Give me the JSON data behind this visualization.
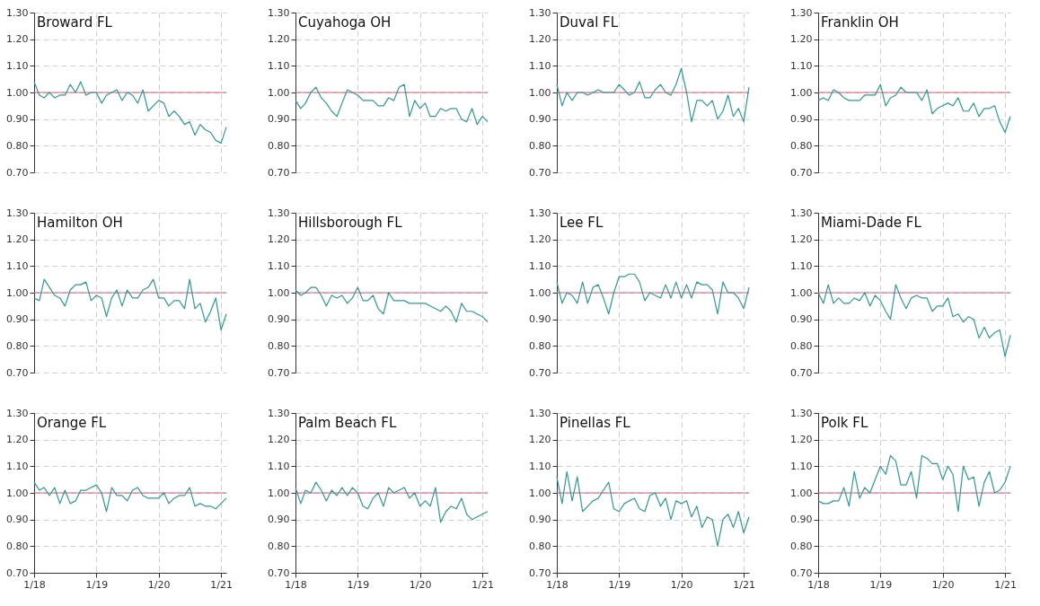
{
  "chart_data": [
    {
      "type": "line",
      "title": "Broward FL",
      "tick_labels": "y",
      "color": "#2e9a94",
      "grid": true,
      "xlim": [
        "2018-01",
        "2021-02"
      ],
      "xticks": [
        {
          "value": "2018-01",
          "label": null
        },
        {
          "value": "2019-01",
          "label": null
        },
        {
          "value": "2020-01",
          "label": null
        },
        {
          "value": "2021-01",
          "label": null
        }
      ],
      "ylim": [
        0.7,
        1.3
      ],
      "yticks": [
        {
          "value": 0.7,
          "label": "0.70"
        },
        {
          "value": 0.8,
          "label": "0.80"
        },
        {
          "value": 0.9,
          "label": "0.90"
        },
        {
          "value": 1.0,
          "label": "1.00"
        },
        {
          "value": 1.1,
          "label": "1.10"
        },
        {
          "value": 1.2,
          "label": "1.20"
        },
        {
          "value": 1.3,
          "label": "1.30"
        }
      ],
      "ref_lines": [
        {
          "axis": "y",
          "value": 1.0,
          "color": "#d9607e"
        }
      ],
      "x": [
        "2018-01",
        "2018-02",
        "2018-03",
        "2018-04",
        "2018-05",
        "2018-06",
        "2018-07",
        "2018-08",
        "2018-09",
        "2018-10",
        "2018-11",
        "2018-12",
        "2019-01",
        "2019-02",
        "2019-03",
        "2019-04",
        "2019-05",
        "2019-06",
        "2019-07",
        "2019-08",
        "2019-09",
        "2019-10",
        "2019-11",
        "2019-12",
        "2020-01",
        "2020-02",
        "2020-03",
        "2020-04",
        "2020-05",
        "2020-06",
        "2020-07",
        "2020-08",
        "2020-09",
        "2020-10",
        "2020-11",
        "2020-12",
        "2021-01",
        "2021-02"
      ],
      "values": [
        1.04,
        0.99,
        0.98,
        1.0,
        0.98,
        0.99,
        0.99,
        1.03,
        1.0,
        1.04,
        0.99,
        1.0,
        1.0,
        0.96,
        0.99,
        1.0,
        1.01,
        0.97,
        1.0,
        0.99,
        0.96,
        1.01,
        0.93,
        0.95,
        0.97,
        0.96,
        0.91,
        0.93,
        0.91,
        0.88,
        0.89,
        0.84,
        0.88,
        0.86,
        0.85,
        0.82,
        0.81,
        0.87
      ]
    },
    {
      "type": "line",
      "title": "Cuyahoga OH",
      "tick_labels": "y",
      "color": "#2e9a94",
      "grid": true,
      "xlim": [
        "2018-01",
        "2021-02"
      ],
      "xticks": [
        {
          "value": "2018-01",
          "label": null
        },
        {
          "value": "2019-01",
          "label": null
        },
        {
          "value": "2020-01",
          "label": null
        },
        {
          "value": "2021-01",
          "label": null
        }
      ],
      "ylim": [
        0.7,
        1.3
      ],
      "yticks": [
        {
          "value": 0.7,
          "label": "0.70"
        },
        {
          "value": 0.8,
          "label": "0.80"
        },
        {
          "value": 0.9,
          "label": "0.90"
        },
        {
          "value": 1.0,
          "label": "1.00"
        },
        {
          "value": 1.1,
          "label": "1.10"
        },
        {
          "value": 1.2,
          "label": "1.20"
        },
        {
          "value": 1.3,
          "label": "1.30"
        }
      ],
      "ref_lines": [
        {
          "axis": "y",
          "value": 1.0,
          "color": "#d9607e"
        }
      ],
      "x": [
        "2018-01",
        "2018-02",
        "2018-03",
        "2018-04",
        "2018-05",
        "2018-06",
        "2018-07",
        "2018-08",
        "2018-09",
        "2018-10",
        "2018-11",
        "2018-12",
        "2019-01",
        "2019-02",
        "2019-03",
        "2019-04",
        "2019-05",
        "2019-06",
        "2019-07",
        "2019-08",
        "2019-09",
        "2019-10",
        "2019-11",
        "2019-12",
        "2020-01",
        "2020-02",
        "2020-03",
        "2020-04",
        "2020-05",
        "2020-06",
        "2020-07",
        "2020-08",
        "2020-09",
        "2020-10",
        "2020-11",
        "2020-12",
        "2021-01",
        "2021-02"
      ],
      "values": [
        0.97,
        0.94,
        0.96,
        1.0,
        1.02,
        0.98,
        0.96,
        0.93,
        0.91,
        0.96,
        1.01,
        1.0,
        0.99,
        0.97,
        0.97,
        0.97,
        0.95,
        0.95,
        0.98,
        0.97,
        1.02,
        1.03,
        0.91,
        0.97,
        0.94,
        0.96,
        0.91,
        0.91,
        0.94,
        0.93,
        0.94,
        0.94,
        0.9,
        0.89,
        0.94,
        0.88,
        0.91,
        0.89
      ]
    },
    {
      "type": "line",
      "title": "Duval FL",
      "tick_labels": "y",
      "color": "#2e9a94",
      "grid": true,
      "xlim": [
        "2018-01",
        "2021-02"
      ],
      "xticks": [
        {
          "value": "2018-01",
          "label": null
        },
        {
          "value": "2019-01",
          "label": null
        },
        {
          "value": "2020-01",
          "label": null
        },
        {
          "value": "2021-01",
          "label": null
        }
      ],
      "ylim": [
        0.7,
        1.3
      ],
      "yticks": [
        {
          "value": 0.7,
          "label": "0.70"
        },
        {
          "value": 0.8,
          "label": "0.80"
        },
        {
          "value": 0.9,
          "label": "0.90"
        },
        {
          "value": 1.0,
          "label": "1.00"
        },
        {
          "value": 1.1,
          "label": "1.10"
        },
        {
          "value": 1.2,
          "label": "1.20"
        },
        {
          "value": 1.3,
          "label": "1.30"
        }
      ],
      "ref_lines": [
        {
          "axis": "y",
          "value": 1.0,
          "color": "#d9607e"
        }
      ],
      "x": [
        "2018-01",
        "2018-02",
        "2018-03",
        "2018-04",
        "2018-05",
        "2018-06",
        "2018-07",
        "2018-08",
        "2018-09",
        "2018-10",
        "2018-11",
        "2018-12",
        "2019-01",
        "2019-02",
        "2019-03",
        "2019-04",
        "2019-05",
        "2019-06",
        "2019-07",
        "2019-08",
        "2019-09",
        "2019-10",
        "2019-11",
        "2019-12",
        "2020-01",
        "2020-02",
        "2020-03",
        "2020-04",
        "2020-05",
        "2020-06",
        "2020-07",
        "2020-08",
        "2020-09",
        "2020-10",
        "2020-11",
        "2020-12",
        "2021-01",
        "2021-02"
      ],
      "values": [
        1.03,
        0.95,
        1.0,
        0.97,
        1.0,
        1.0,
        0.99,
        1.0,
        1.01,
        1.0,
        1.0,
        1.0,
        1.03,
        1.01,
        0.99,
        1.0,
        1.04,
        0.98,
        0.98,
        1.01,
        1.03,
        1.0,
        0.99,
        1.03,
        1.09,
        1.0,
        0.89,
        0.97,
        0.97,
        0.95,
        0.97,
        0.9,
        0.93,
        0.99,
        0.91,
        0.94,
        0.89,
        1.02
      ]
    },
    {
      "type": "line",
      "title": "Franklin OH",
      "tick_labels": "y",
      "color": "#2e9a94",
      "grid": true,
      "xlim": [
        "2018-01",
        "2021-02"
      ],
      "xticks": [
        {
          "value": "2018-01",
          "label": null
        },
        {
          "value": "2019-01",
          "label": null
        },
        {
          "value": "2020-01",
          "label": null
        },
        {
          "value": "2021-01",
          "label": null
        }
      ],
      "ylim": [
        0.7,
        1.3
      ],
      "yticks": [
        {
          "value": 0.7,
          "label": "0.70"
        },
        {
          "value": 0.8,
          "label": "0.80"
        },
        {
          "value": 0.9,
          "label": "0.90"
        },
        {
          "value": 1.0,
          "label": "1.00"
        },
        {
          "value": 1.1,
          "label": "1.10"
        },
        {
          "value": 1.2,
          "label": "1.20"
        },
        {
          "value": 1.3,
          "label": "1.30"
        }
      ],
      "ref_lines": [
        {
          "axis": "y",
          "value": 1.0,
          "color": "#d9607e"
        }
      ],
      "x": [
        "2018-01",
        "2018-02",
        "2018-03",
        "2018-04",
        "2018-05",
        "2018-06",
        "2018-07",
        "2018-08",
        "2018-09",
        "2018-10",
        "2018-11",
        "2018-12",
        "2019-01",
        "2019-02",
        "2019-03",
        "2019-04",
        "2019-05",
        "2019-06",
        "2019-07",
        "2019-08",
        "2019-09",
        "2019-10",
        "2019-11",
        "2019-12",
        "2020-01",
        "2020-02",
        "2020-03",
        "2020-04",
        "2020-05",
        "2020-06",
        "2020-07",
        "2020-08",
        "2020-09",
        "2020-10",
        "2020-11",
        "2020-12",
        "2021-01",
        "2021-02"
      ],
      "values": [
        0.97,
        0.98,
        0.97,
        1.01,
        1.0,
        0.98,
        0.97,
        0.97,
        0.97,
        0.99,
        0.99,
        0.99,
        1.03,
        0.95,
        0.98,
        0.99,
        1.02,
        1.0,
        1.0,
        1.0,
        0.97,
        1.01,
        0.92,
        0.94,
        0.95,
        0.96,
        0.95,
        0.98,
        0.93,
        0.93,
        0.96,
        0.91,
        0.94,
        0.94,
        0.95,
        0.89,
        0.85,
        0.91
      ]
    },
    {
      "type": "line",
      "title": "Hamilton OH",
      "tick_labels": "y",
      "color": "#2e9a94",
      "grid": true,
      "xlim": [
        "2018-01",
        "2021-02"
      ],
      "xticks": [
        {
          "value": "2018-01",
          "label": null
        },
        {
          "value": "2019-01",
          "label": null
        },
        {
          "value": "2020-01",
          "label": null
        },
        {
          "value": "2021-01",
          "label": null
        }
      ],
      "ylim": [
        0.7,
        1.3
      ],
      "yticks": [
        {
          "value": 0.7,
          "label": "0.70"
        },
        {
          "value": 0.8,
          "label": "0.80"
        },
        {
          "value": 0.9,
          "label": "0.90"
        },
        {
          "value": 1.0,
          "label": "1.00"
        },
        {
          "value": 1.1,
          "label": "1.10"
        },
        {
          "value": 1.2,
          "label": "1.20"
        },
        {
          "value": 1.3,
          "label": "1.30"
        }
      ],
      "ref_lines": [
        {
          "axis": "y",
          "value": 1.0,
          "color": "#d9607e"
        }
      ],
      "x": [
        "2018-01",
        "2018-02",
        "2018-03",
        "2018-04",
        "2018-05",
        "2018-06",
        "2018-07",
        "2018-08",
        "2018-09",
        "2018-10",
        "2018-11",
        "2018-12",
        "2019-01",
        "2019-02",
        "2019-03",
        "2019-04",
        "2019-05",
        "2019-06",
        "2019-07",
        "2019-08",
        "2019-09",
        "2019-10",
        "2019-11",
        "2019-12",
        "2020-01",
        "2020-02",
        "2020-03",
        "2020-04",
        "2020-05",
        "2020-06",
        "2020-07",
        "2020-08",
        "2020-09",
        "2020-10",
        "2020-11",
        "2020-12",
        "2021-01",
        "2021-02"
      ],
      "values": [
        0.98,
        0.97,
        1.05,
        1.02,
        0.99,
        0.98,
        0.95,
        1.01,
        1.03,
        1.03,
        1.04,
        0.97,
        0.99,
        0.98,
        0.91,
        0.98,
        1.01,
        0.95,
        1.01,
        0.98,
        0.98,
        1.01,
        1.02,
        1.05,
        0.98,
        0.98,
        0.95,
        0.97,
        0.97,
        0.94,
        1.05,
        0.94,
        0.96,
        0.89,
        0.93,
        0.98,
        0.86,
        0.92
      ]
    },
    {
      "type": "line",
      "title": "Hillsborough FL",
      "tick_labels": "y",
      "color": "#2e9a94",
      "grid": true,
      "xlim": [
        "2018-01",
        "2021-02"
      ],
      "xticks": [
        {
          "value": "2018-01",
          "label": null
        },
        {
          "value": "2019-01",
          "label": null
        },
        {
          "value": "2020-01",
          "label": null
        },
        {
          "value": "2021-01",
          "label": null
        }
      ],
      "ylim": [
        0.7,
        1.3
      ],
      "yticks": [
        {
          "value": 0.7,
          "label": "0.70"
        },
        {
          "value": 0.8,
          "label": "0.80"
        },
        {
          "value": 0.9,
          "label": "0.90"
        },
        {
          "value": 1.0,
          "label": "1.00"
        },
        {
          "value": 1.1,
          "label": "1.10"
        },
        {
          "value": 1.2,
          "label": "1.20"
        },
        {
          "value": 1.3,
          "label": "1.30"
        }
      ],
      "ref_lines": [
        {
          "axis": "y",
          "value": 1.0,
          "color": "#d9607e"
        }
      ],
      "x": [
        "2018-01",
        "2018-02",
        "2018-03",
        "2018-04",
        "2018-05",
        "2018-06",
        "2018-07",
        "2018-08",
        "2018-09",
        "2018-10",
        "2018-11",
        "2018-12",
        "2019-01",
        "2019-02",
        "2019-03",
        "2019-04",
        "2019-05",
        "2019-06",
        "2019-07",
        "2019-08",
        "2019-09",
        "2019-10",
        "2019-11",
        "2019-12",
        "2020-01",
        "2020-02",
        "2020-03",
        "2020-04",
        "2020-05",
        "2020-06",
        "2020-07",
        "2020-08",
        "2020-09",
        "2020-10",
        "2020-11",
        "2020-12",
        "2021-01",
        "2021-02"
      ],
      "values": [
        1.01,
        0.99,
        1.0,
        1.02,
        1.02,
        0.99,
        0.95,
        0.99,
        0.98,
        0.99,
        0.96,
        0.98,
        1.02,
        0.97,
        0.97,
        0.99,
        0.94,
        0.92,
        1.0,
        0.97,
        0.97,
        0.97,
        0.96,
        0.96,
        0.96,
        0.96,
        0.95,
        0.94,
        0.93,
        0.95,
        0.93,
        0.89,
        0.96,
        0.93,
        0.93,
        0.92,
        0.91,
        0.89
      ]
    },
    {
      "type": "line",
      "title": "Lee FL",
      "tick_labels": "y",
      "color": "#2e9a94",
      "grid": true,
      "xlim": [
        "2018-01",
        "2021-02"
      ],
      "xticks": [
        {
          "value": "2018-01",
          "label": null
        },
        {
          "value": "2019-01",
          "label": null
        },
        {
          "value": "2020-01",
          "label": null
        },
        {
          "value": "2021-01",
          "label": null
        }
      ],
      "ylim": [
        0.7,
        1.3
      ],
      "yticks": [
        {
          "value": 0.7,
          "label": "0.70"
        },
        {
          "value": 0.8,
          "label": "0.80"
        },
        {
          "value": 0.9,
          "label": "0.90"
        },
        {
          "value": 1.0,
          "label": "1.00"
        },
        {
          "value": 1.1,
          "label": "1.10"
        },
        {
          "value": 1.2,
          "label": "1.20"
        },
        {
          "value": 1.3,
          "label": "1.30"
        }
      ],
      "ref_lines": [
        {
          "axis": "y",
          "value": 1.0,
          "color": "#d9607e"
        }
      ],
      "x": [
        "2018-01",
        "2018-02",
        "2018-03",
        "2018-04",
        "2018-05",
        "2018-06",
        "2018-07",
        "2018-08",
        "2018-09",
        "2018-10",
        "2018-11",
        "2018-12",
        "2019-01",
        "2019-02",
        "2019-03",
        "2019-04",
        "2019-05",
        "2019-06",
        "2019-07",
        "2019-08",
        "2019-09",
        "2019-10",
        "2019-11",
        "2019-12",
        "2020-01",
        "2020-02",
        "2020-03",
        "2020-04",
        "2020-05",
        "2020-06",
        "2020-07",
        "2020-08",
        "2020-09",
        "2020-10",
        "2020-11",
        "2020-12",
        "2021-01",
        "2021-02"
      ],
      "values": [
        1.04,
        0.96,
        1.0,
        0.99,
        0.96,
        1.04,
        0.96,
        1.02,
        1.03,
        0.98,
        0.92,
        1.0,
        1.06,
        1.06,
        1.07,
        1.07,
        1.04,
        0.97,
        1.0,
        0.99,
        0.98,
        1.03,
        0.98,
        1.04,
        0.98,
        1.03,
        0.98,
        1.04,
        1.03,
        1.03,
        1.01,
        0.92,
        1.04,
        1.0,
        1.0,
        0.98,
        0.94,
        1.02
      ]
    },
    {
      "type": "line",
      "title": "Miami-Dade FL",
      "tick_labels": "y",
      "color": "#2e9a94",
      "grid": true,
      "xlim": [
        "2018-01",
        "2021-02"
      ],
      "xticks": [
        {
          "value": "2018-01",
          "label": null
        },
        {
          "value": "2019-01",
          "label": null
        },
        {
          "value": "2020-01",
          "label": null
        },
        {
          "value": "2021-01",
          "label": null
        }
      ],
      "ylim": [
        0.7,
        1.3
      ],
      "yticks": [
        {
          "value": 0.7,
          "label": "0.70"
        },
        {
          "value": 0.8,
          "label": "0.80"
        },
        {
          "value": 0.9,
          "label": "0.90"
        },
        {
          "value": 1.0,
          "label": "1.00"
        },
        {
          "value": 1.1,
          "label": "1.10"
        },
        {
          "value": 1.2,
          "label": "1.20"
        },
        {
          "value": 1.3,
          "label": "1.30"
        }
      ],
      "ref_lines": [
        {
          "axis": "y",
          "value": 1.0,
          "color": "#d9607e"
        }
      ],
      "x": [
        "2018-01",
        "2018-02",
        "2018-03",
        "2018-04",
        "2018-05",
        "2018-06",
        "2018-07",
        "2018-08",
        "2018-09",
        "2018-10",
        "2018-11",
        "2018-12",
        "2019-01",
        "2019-02",
        "2019-03",
        "2019-04",
        "2019-05",
        "2019-06",
        "2019-07",
        "2019-08",
        "2019-09",
        "2019-10",
        "2019-11",
        "2019-12",
        "2020-01",
        "2020-02",
        "2020-03",
        "2020-04",
        "2020-05",
        "2020-06",
        "2020-07",
        "2020-08",
        "2020-09",
        "2020-10",
        "2020-11",
        "2020-12",
        "2021-01",
        "2021-02"
      ],
      "values": [
        1.0,
        0.96,
        1.03,
        0.96,
        0.98,
        0.96,
        0.96,
        0.98,
        0.97,
        1.0,
        0.95,
        0.99,
        0.97,
        0.93,
        0.9,
        1.03,
        0.98,
        0.94,
        0.98,
        0.99,
        0.98,
        0.98,
        0.93,
        0.95,
        0.95,
        0.98,
        0.91,
        0.92,
        0.89,
        0.91,
        0.9,
        0.83,
        0.87,
        0.83,
        0.85,
        0.86,
        0.76,
        0.84
      ]
    },
    {
      "type": "line",
      "title": "Orange FL",
      "color": "#2e9a94",
      "grid": true,
      "xlim": [
        "2018-01",
        "2021-02"
      ],
      "xticks": [
        {
          "value": "2018-01",
          "label": "1/18"
        },
        {
          "value": "2019-01",
          "label": "1/19"
        },
        {
          "value": "2020-01",
          "label": "1/20"
        },
        {
          "value": "2021-01",
          "label": "1/21"
        }
      ],
      "ylim": [
        0.7,
        1.3
      ],
      "yticks": [
        {
          "value": 0.7,
          "label": "0.70"
        },
        {
          "value": 0.8,
          "label": "0.80"
        },
        {
          "value": 0.9,
          "label": "0.90"
        },
        {
          "value": 1.0,
          "label": "1.00"
        },
        {
          "value": 1.1,
          "label": "1.10"
        },
        {
          "value": 1.2,
          "label": "1.20"
        },
        {
          "value": 1.3,
          "label": "1.30"
        }
      ],
      "ref_lines": [
        {
          "axis": "y",
          "value": 1.0,
          "color": "#d9607e"
        }
      ],
      "x": [
        "2018-01",
        "2018-02",
        "2018-03",
        "2018-04",
        "2018-05",
        "2018-06",
        "2018-07",
        "2018-08",
        "2018-09",
        "2018-10",
        "2018-11",
        "2018-12",
        "2019-01",
        "2019-02",
        "2019-03",
        "2019-04",
        "2019-05",
        "2019-06",
        "2019-07",
        "2019-08",
        "2019-09",
        "2019-10",
        "2019-11",
        "2019-12",
        "2020-01",
        "2020-02",
        "2020-03",
        "2020-04",
        "2020-05",
        "2020-06",
        "2020-07",
        "2020-08",
        "2020-09",
        "2020-10",
        "2020-11",
        "2020-12",
        "2021-01",
        "2021-02"
      ],
      "values": [
        1.04,
        1.01,
        1.02,
        0.99,
        1.02,
        0.96,
        1.01,
        0.96,
        0.97,
        1.01,
        1.01,
        1.02,
        1.03,
        1.0,
        0.93,
        1.02,
        0.99,
        0.99,
        0.97,
        1.01,
        1.02,
        0.99,
        0.98,
        0.98,
        0.98,
        1.0,
        0.96,
        0.98,
        0.99,
        0.99,
        1.02,
        0.95,
        0.96,
        0.95,
        0.95,
        0.94,
        0.96,
        0.98
      ]
    },
    {
      "type": "line",
      "title": "Palm Beach FL",
      "color": "#2e9a94",
      "grid": true,
      "xlim": [
        "2018-01",
        "2021-02"
      ],
      "xticks": [
        {
          "value": "2018-01",
          "label": "1/18"
        },
        {
          "value": "2019-01",
          "label": "1/19"
        },
        {
          "value": "2020-01",
          "label": "1/20"
        },
        {
          "value": "2021-01",
          "label": "1/21"
        }
      ],
      "ylim": [
        0.7,
        1.3
      ],
      "yticks": [
        {
          "value": 0.7,
          "label": "0.70"
        },
        {
          "value": 0.8,
          "label": "0.80"
        },
        {
          "value": 0.9,
          "label": "0.90"
        },
        {
          "value": 1.0,
          "label": "1.00"
        },
        {
          "value": 1.1,
          "label": "1.10"
        },
        {
          "value": 1.2,
          "label": "1.20"
        },
        {
          "value": 1.3,
          "label": "1.30"
        }
      ],
      "ref_lines": [
        {
          "axis": "y",
          "value": 1.0,
          "color": "#d9607e"
        }
      ],
      "x": [
        "2018-01",
        "2018-02",
        "2018-03",
        "2018-04",
        "2018-05",
        "2018-06",
        "2018-07",
        "2018-08",
        "2018-09",
        "2018-10",
        "2018-11",
        "2018-12",
        "2019-01",
        "2019-02",
        "2019-03",
        "2019-04",
        "2019-05",
        "2019-06",
        "2019-07",
        "2019-08",
        "2019-09",
        "2019-10",
        "2019-11",
        "2019-12",
        "2020-01",
        "2020-02",
        "2020-03",
        "2020-04",
        "2020-05",
        "2020-06",
        "2020-07",
        "2020-08",
        "2020-09",
        "2020-10",
        "2020-11",
        "2020-12",
        "2021-01",
        "2021-02"
      ],
      "values": [
        1.02,
        0.96,
        1.01,
        1.0,
        1.04,
        1.01,
        0.97,
        1.01,
        0.99,
        1.02,
        0.99,
        1.02,
        1.0,
        0.95,
        0.94,
        0.98,
        1.0,
        0.95,
        1.02,
        1.0,
        1.01,
        1.02,
        0.98,
        1.0,
        0.95,
        0.97,
        0.95,
        1.02,
        0.89,
        0.93,
        0.95,
        0.94,
        0.98,
        0.92,
        0.9,
        0.91,
        0.92,
        0.93
      ]
    },
    {
      "type": "line",
      "title": "Pinellas FL",
      "color": "#2e9a94",
      "grid": true,
      "xlim": [
        "2018-01",
        "2021-02"
      ],
      "xticks": [
        {
          "value": "2018-01",
          "label": "1/18"
        },
        {
          "value": "2019-01",
          "label": "1/19"
        },
        {
          "value": "2020-01",
          "label": "1/20"
        },
        {
          "value": "2021-01",
          "label": "1/21"
        }
      ],
      "ylim": [
        0.7,
        1.3
      ],
      "yticks": [
        {
          "value": 0.7,
          "label": "0.70"
        },
        {
          "value": 0.8,
          "label": "0.80"
        },
        {
          "value": 0.9,
          "label": "0.90"
        },
        {
          "value": 1.0,
          "label": "1.00"
        },
        {
          "value": 1.1,
          "label": "1.10"
        },
        {
          "value": 1.2,
          "label": "1.20"
        },
        {
          "value": 1.3,
          "label": "1.30"
        }
      ],
      "ref_lines": [
        {
          "axis": "y",
          "value": 1.0,
          "color": "#d9607e"
        }
      ],
      "x": [
        "2018-01",
        "2018-02",
        "2018-03",
        "2018-04",
        "2018-05",
        "2018-06",
        "2018-07",
        "2018-08",
        "2018-09",
        "2018-10",
        "2018-11",
        "2018-12",
        "2019-01",
        "2019-02",
        "2019-03",
        "2019-04",
        "2019-05",
        "2019-06",
        "2019-07",
        "2019-08",
        "2019-09",
        "2019-10",
        "2019-11",
        "2019-12",
        "2020-01",
        "2020-02",
        "2020-03",
        "2020-04",
        "2020-05",
        "2020-06",
        "2020-07",
        "2020-08",
        "2020-09",
        "2020-10",
        "2020-11",
        "2020-12",
        "2021-01",
        "2021-02"
      ],
      "values": [
        1.06,
        0.96,
        1.08,
        0.97,
        1.06,
        0.93,
        0.95,
        0.97,
        0.98,
        1.01,
        1.04,
        0.94,
        0.93,
        0.96,
        0.97,
        0.98,
        0.94,
        0.93,
        0.99,
        1.0,
        0.95,
        0.98,
        0.9,
        0.97,
        0.96,
        0.97,
        0.91,
        0.95,
        0.87,
        0.91,
        0.9,
        0.8,
        0.9,
        0.92,
        0.87,
        0.93,
        0.85,
        0.91
      ]
    },
    {
      "type": "line",
      "title": "Polk FL",
      "color": "#2e9a94",
      "grid": true,
      "xlim": [
        "2018-01",
        "2021-02"
      ],
      "xticks": [
        {
          "value": "2018-01",
          "label": "1/18"
        },
        {
          "value": "2019-01",
          "label": "1/19"
        },
        {
          "value": "2020-01",
          "label": "1/20"
        },
        {
          "value": "2021-01",
          "label": "1/21"
        }
      ],
      "ylim": [
        0.7,
        1.3
      ],
      "yticks": [
        {
          "value": 0.7,
          "label": "0.70"
        },
        {
          "value": 0.8,
          "label": "0.80"
        },
        {
          "value": 0.9,
          "label": "0.90"
        },
        {
          "value": 1.0,
          "label": "1.00"
        },
        {
          "value": 1.1,
          "label": "1.10"
        },
        {
          "value": 1.2,
          "label": "1.20"
        },
        {
          "value": 1.3,
          "label": "1.30"
        }
      ],
      "ref_lines": [
        {
          "axis": "y",
          "value": 1.0,
          "color": "#d9607e"
        }
      ],
      "x": [
        "2018-01",
        "2018-02",
        "2018-03",
        "2018-04",
        "2018-05",
        "2018-06",
        "2018-07",
        "2018-08",
        "2018-09",
        "2018-10",
        "2018-11",
        "2018-12",
        "2019-01",
        "2019-02",
        "2019-03",
        "2019-04",
        "2019-05",
        "2019-06",
        "2019-07",
        "2019-08",
        "2019-09",
        "2019-10",
        "2019-11",
        "2019-12",
        "2020-01",
        "2020-02",
        "2020-03",
        "2020-04",
        "2020-05",
        "2020-06",
        "2020-07",
        "2020-08",
        "2020-09",
        "2020-10",
        "2020-11",
        "2020-12",
        "2021-01",
        "2021-02"
      ],
      "values": [
        0.97,
        0.96,
        0.96,
        0.97,
        0.97,
        1.02,
        0.95,
        1.08,
        0.98,
        1.02,
        1.0,
        1.05,
        1.1,
        1.07,
        1.14,
        1.12,
        1.03,
        1.03,
        1.08,
        0.98,
        1.14,
        1.13,
        1.11,
        1.11,
        1.05,
        1.1,
        1.07,
        0.93,
        1.1,
        1.05,
        1.06,
        0.95,
        1.04,
        1.08,
        1.0,
        1.01,
        1.04,
        1.1
      ]
    }
  ]
}
